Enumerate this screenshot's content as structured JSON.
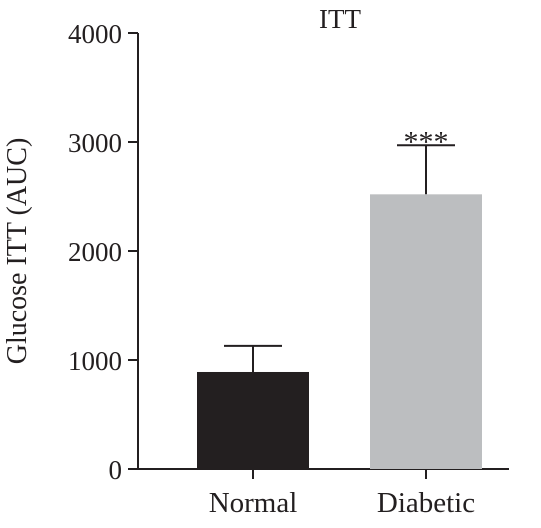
{
  "chart_data": {
    "type": "bar",
    "title": "ITT",
    "xlabel": "",
    "ylabel": "Glucose ITT (AUC)",
    "ylim": [
      0,
      4000
    ],
    "yticks": [
      0,
      1000,
      2000,
      3000,
      4000
    ],
    "categories": [
      "Normal",
      "Diabetic"
    ],
    "values": [
      890,
      2520
    ],
    "errors": [
      240,
      450
    ],
    "bar_colors": [
      "#231f20",
      "#bcbec0"
    ],
    "annotations": [
      {
        "category": "Diabetic",
        "text": "***"
      }
    ],
    "grid": false,
    "legend": "none"
  }
}
